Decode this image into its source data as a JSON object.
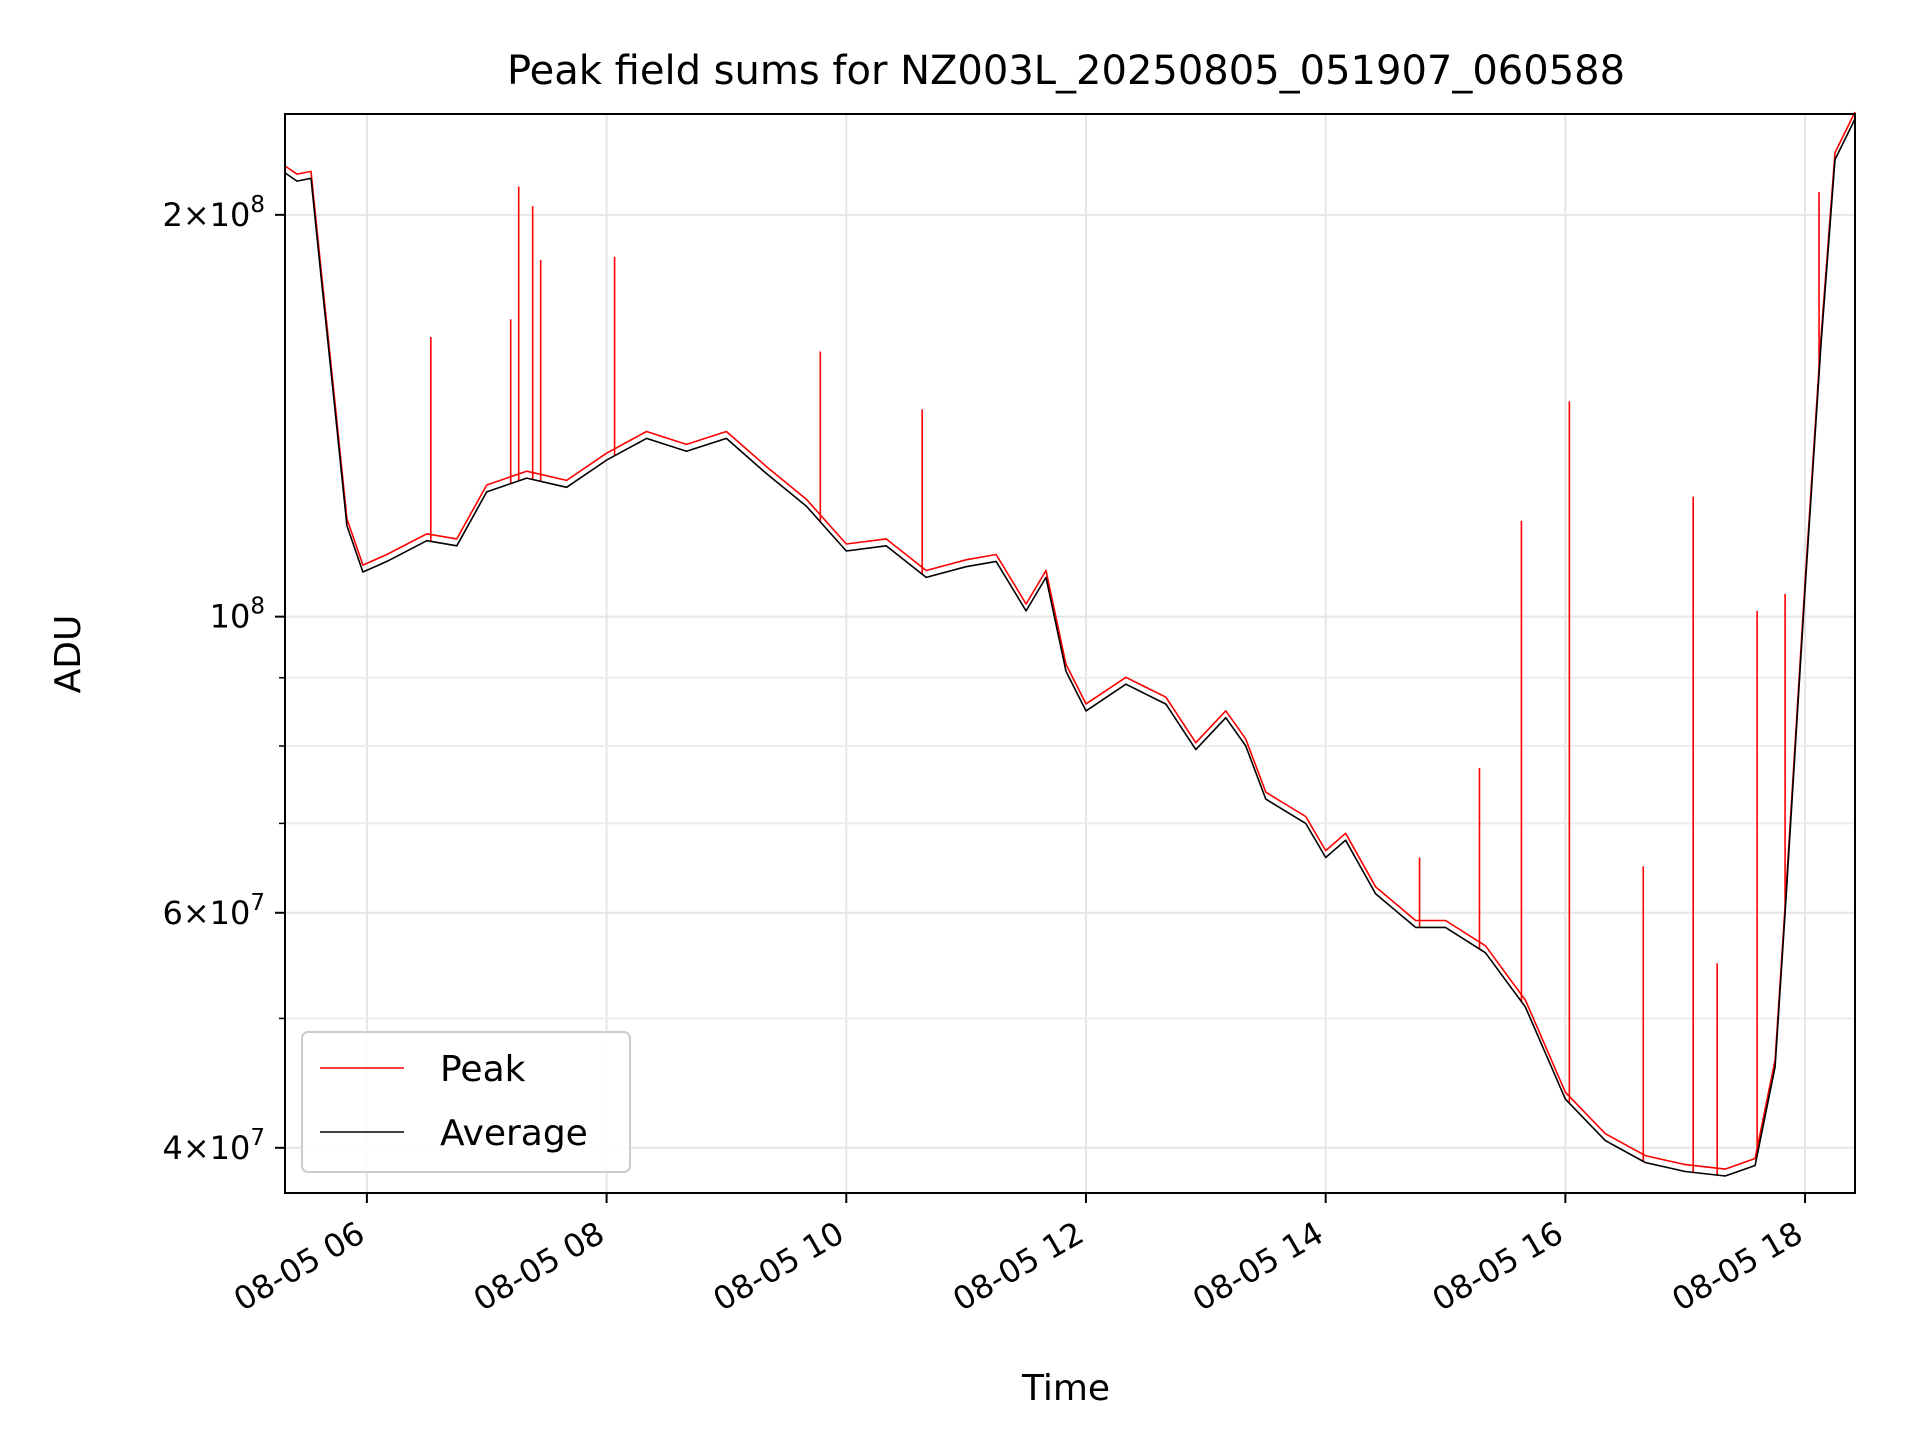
{
  "chart_data": {
    "type": "line",
    "title": "Peak field sums for NZ003L_20250805_051907_060588",
    "xlabel": "Time",
    "ylabel": "ADU",
    "y_scale": "log",
    "grid": true,
    "legend_position": "lower-left",
    "x_range": [
      "2025-08-05 05:19",
      "2025-08-05 18:25"
    ],
    "y_range": [
      37000000,
      238000000
    ],
    "x_ticks": [
      {
        "t": "2025-08-05 06:00",
        "label": "08-05 06"
      },
      {
        "t": "2025-08-05 08:00",
        "label": "08-05 08"
      },
      {
        "t": "2025-08-05 10:00",
        "label": "08-05 10"
      },
      {
        "t": "2025-08-05 12:00",
        "label": "08-05 12"
      },
      {
        "t": "2025-08-05 14:00",
        "label": "08-05 14"
      },
      {
        "t": "2025-08-05 16:00",
        "label": "08-05 16"
      },
      {
        "t": "2025-08-05 18:00",
        "label": "08-05 18"
      }
    ],
    "y_ticks_major": [
      {
        "value": 40000000,
        "base": "4",
        "exp": "7"
      },
      {
        "value": 60000000,
        "base": "6",
        "exp": "7"
      },
      {
        "value": 100000000,
        "base": "",
        "exp": "8"
      },
      {
        "value": 200000000,
        "base": "2",
        "exp": "8"
      }
    ],
    "y_ticks_minor": [
      50000000,
      70000000,
      80000000,
      90000000,
      300000000
    ],
    "series": [
      {
        "name": "Average",
        "color": "#000000",
        "points": [
          [
            "2025-08-05 05:19",
            215000000
          ],
          [
            "2025-08-05 05:25",
            212000000
          ],
          [
            "2025-08-05 05:32",
            213000000
          ],
          [
            "2025-08-05 05:37",
            180000000
          ],
          [
            "2025-08-05 05:43",
            148000000
          ],
          [
            "2025-08-05 05:50",
            117000000
          ],
          [
            "2025-08-05 05:58",
            108000000
          ],
          [
            "2025-08-05 06:10",
            110000000
          ],
          [
            "2025-08-05 06:30",
            114000000
          ],
          [
            "2025-08-05 06:45",
            113000000
          ],
          [
            "2025-08-05 07:00",
            124000000
          ],
          [
            "2025-08-05 07:20",
            127000000
          ],
          [
            "2025-08-05 07:40",
            125000000
          ],
          [
            "2025-08-05 08:00",
            131000000
          ],
          [
            "2025-08-05 08:20",
            136000000
          ],
          [
            "2025-08-05 08:40",
            133000000
          ],
          [
            "2025-08-05 09:00",
            136000000
          ],
          [
            "2025-08-05 09:20",
            128000000
          ],
          [
            "2025-08-05 09:40",
            121000000
          ],
          [
            "2025-08-05 10:00",
            112000000
          ],
          [
            "2025-08-05 10:20",
            113000000
          ],
          [
            "2025-08-05 10:40",
            107000000
          ],
          [
            "2025-08-05 11:00",
            109000000
          ],
          [
            "2025-08-05 11:15",
            110000000
          ],
          [
            "2025-08-05 11:30",
            101000000
          ],
          [
            "2025-08-05 11:40",
            107000000
          ],
          [
            "2025-08-05 11:50",
            91000000
          ],
          [
            "2025-08-05 12:00",
            85000000
          ],
          [
            "2025-08-05 12:20",
            89000000
          ],
          [
            "2025-08-05 12:40",
            86000000
          ],
          [
            "2025-08-05 12:55",
            79500000
          ],
          [
            "2025-08-05 13:10",
            84000000
          ],
          [
            "2025-08-05 13:20",
            80000000
          ],
          [
            "2025-08-05 13:30",
            73000000
          ],
          [
            "2025-08-05 13:50",
            70000000
          ],
          [
            "2025-08-05 14:00",
            66000000
          ],
          [
            "2025-08-05 14:10",
            68000000
          ],
          [
            "2025-08-05 14:25",
            62000000
          ],
          [
            "2025-08-05 14:45",
            58500000
          ],
          [
            "2025-08-05 15:00",
            58500000
          ],
          [
            "2025-08-05 15:20",
            56000000
          ],
          [
            "2025-08-05 15:40",
            51000000
          ],
          [
            "2025-08-05 16:00",
            43500000
          ],
          [
            "2025-08-05 16:20",
            40500000
          ],
          [
            "2025-08-05 16:40",
            39000000
          ],
          [
            "2025-08-05 17:00",
            38400000
          ],
          [
            "2025-08-05 17:20",
            38100000
          ],
          [
            "2025-08-05 17:35",
            38800000
          ],
          [
            "2025-08-05 17:45",
            46000000
          ],
          [
            "2025-08-05 17:50",
            60000000
          ],
          [
            "2025-08-05 18:00",
            105000000
          ],
          [
            "2025-08-05 18:08",
            160000000
          ],
          [
            "2025-08-05 18:15",
            220000000
          ],
          [
            "2025-08-05 18:25",
            236000000
          ]
        ]
      },
      {
        "name": "Peak",
        "color": "#ff0000",
        "spikes": [
          [
            "2025-08-05 05:37",
            182000000
          ],
          [
            "2025-08-05 06:32",
            162000000
          ],
          [
            "2025-08-05 07:12",
            167000000
          ],
          [
            "2025-08-05 07:16",
            210000000
          ],
          [
            "2025-08-05 07:23",
            203000000
          ],
          [
            "2025-08-05 07:27",
            185000000
          ],
          [
            "2025-08-05 08:04",
            186000000
          ],
          [
            "2025-08-05 09:47",
            158000000
          ],
          [
            "2025-08-05 10:38",
            143000000
          ],
          [
            "2025-08-05 14:47",
            66000000
          ],
          [
            "2025-08-05 15:17",
            77000000
          ],
          [
            "2025-08-05 15:38",
            118000000
          ],
          [
            "2025-08-05 16:02",
            145000000
          ],
          [
            "2025-08-05 16:39",
            65000000
          ],
          [
            "2025-08-05 17:04",
            123000000
          ],
          [
            "2025-08-05 17:16",
            55000000
          ],
          [
            "2025-08-05 17:36",
            101000000
          ],
          [
            "2025-08-05 17:50",
            104000000
          ],
          [
            "2025-08-05 18:07",
            208000000
          ]
        ]
      }
    ]
  }
}
